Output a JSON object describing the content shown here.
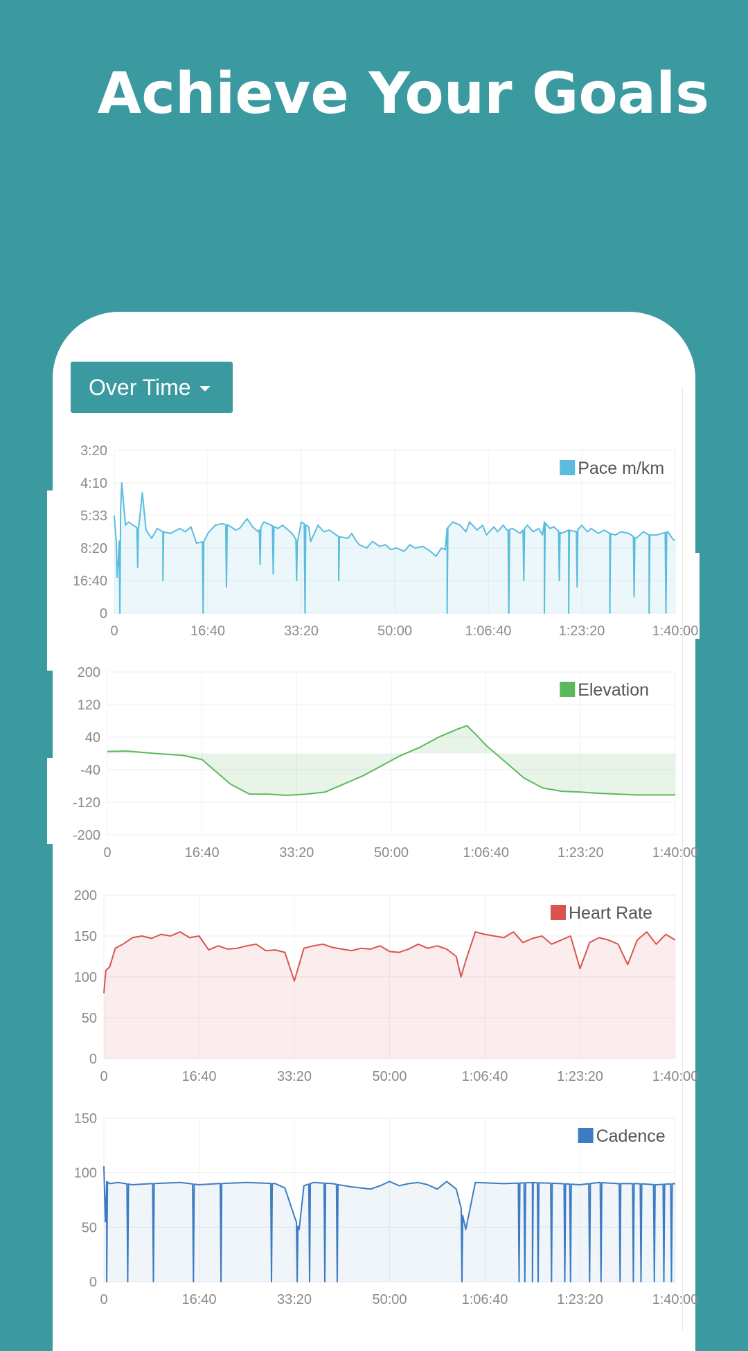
{
  "headline": "Achieve Your Goals",
  "controls": {
    "view_dropdown": "Over Time"
  },
  "chart_data": [
    {
      "type": "area",
      "legend": "Pace m/km",
      "color": "#5bbcdc",
      "fill": "rgba(91,188,220,0.12)",
      "x_ticks": [
        "0",
        "16:40",
        "33:20",
        "50:00",
        "1:06:40",
        "1:23:20",
        "1:40:00"
      ],
      "x_range_seconds": [
        0,
        6000
      ],
      "y_ticks": [
        "3:20",
        "4:10",
        "5:33",
        "8:20",
        "16:40",
        "0"
      ],
      "y_range_index": [
        0,
        5
      ],
      "series": [
        {
          "x": [
            0,
            40,
            80,
            120,
            150,
            200,
            260,
            300,
            340,
            400,
            460,
            520,
            600,
            700,
            760,
            820,
            880,
            960,
            1000,
            1080,
            1150,
            1220,
            1300,
            1340,
            1420,
            1480,
            1540,
            1600,
            1680,
            1750,
            1800,
            1900,
            1960,
            2000,
            2080,
            2100,
            2180,
            2240,
            2300,
            2400,
            2500,
            2540,
            2580,
            2620,
            2700,
            2760,
            2840,
            2900,
            2960,
            3020,
            3100,
            3160,
            3220,
            3300,
            3380,
            3440,
            3500,
            3540,
            3560,
            3620,
            3700,
            3760,
            3800,
            3880,
            3940,
            3980,
            4060,
            4100,
            4160,
            4200,
            4260,
            4340,
            4420,
            4480,
            4540,
            4580,
            4600,
            4660,
            4700,
            4780,
            4860,
            4940,
            5000,
            5060,
            5100,
            5180,
            5240,
            5300,
            5360,
            5420,
            5500,
            5580,
            5660,
            5720,
            5800,
            5860,
            5920,
            5980,
            6000
          ],
          "y": [
            2.0,
            3.55,
            1.0,
            2.3,
            2.2,
            2.3,
            2.4,
            1.3,
            2.45,
            2.7,
            2.4,
            2.5,
            2.55,
            2.4,
            2.5,
            2.35,
            2.85,
            2.8,
            2.55,
            2.3,
            2.25,
            2.3,
            2.45,
            2.4,
            2.1,
            2.35,
            2.5,
            2.2,
            2.3,
            2.4,
            2.3,
            2.55,
            2.8,
            2.2,
            2.35,
            2.8,
            2.3,
            2.5,
            2.45,
            2.65,
            2.7,
            2.55,
            2.75,
            2.9,
            3.0,
            2.8,
            2.95,
            2.9,
            3.05,
            3.0,
            3.1,
            2.9,
            3.0,
            2.95,
            3.1,
            3.25,
            3.0,
            3.05,
            2.4,
            2.2,
            2.3,
            2.5,
            2.2,
            2.45,
            2.3,
            2.6,
            2.35,
            2.5,
            2.3,
            2.45,
            2.4,
            2.55,
            2.3,
            2.5,
            2.4,
            2.6,
            2.2,
            2.4,
            2.35,
            2.55,
            2.45,
            2.5,
            2.3,
            2.5,
            2.4,
            2.55,
            2.45,
            2.55,
            2.6,
            2.5,
            2.55,
            2.7,
            2.5,
            2.6,
            2.6,
            2.55,
            2.5,
            2.75,
            2.75
          ]
        }
      ],
      "dips": [
        {
          "x": 30,
          "y": 3.9
        },
        {
          "x": 60,
          "y": 5.0
        },
        {
          "x": 250,
          "y": 3.6
        },
        {
          "x": 520,
          "y": 4.0
        },
        {
          "x": 950,
          "y": 5.0
        },
        {
          "x": 1200,
          "y": 4.2
        },
        {
          "x": 1560,
          "y": 3.5
        },
        {
          "x": 1700,
          "y": 3.8
        },
        {
          "x": 1950,
          "y": 4.0
        },
        {
          "x": 2040,
          "y": 5.0
        },
        {
          "x": 2400,
          "y": 4.0
        },
        {
          "x": 3560,
          "y": 5.0
        },
        {
          "x": 4220,
          "y": 5.0
        },
        {
          "x": 4380,
          "y": 4.0
        },
        {
          "x": 4600,
          "y": 5.0
        },
        {
          "x": 4760,
          "y": 4.0
        },
        {
          "x": 4860,
          "y": 5.0
        },
        {
          "x": 4950,
          "y": 4.2
        },
        {
          "x": 5300,
          "y": 5.0
        },
        {
          "x": 5560,
          "y": 4.5
        },
        {
          "x": 5720,
          "y": 5.0
        },
        {
          "x": 5900,
          "y": 5.0
        }
      ]
    },
    {
      "type": "area",
      "legend": "Elevation",
      "color": "#5cb85c",
      "fill": "rgba(92,184,92,0.15)",
      "x_ticks": [
        "0",
        "16:40",
        "33:20",
        "50:00",
        "1:06:40",
        "1:23:20",
        "1:40:00"
      ],
      "x_range_seconds": [
        0,
        6000
      ],
      "y_ticks": [
        "200",
        "120",
        "40",
        "-40",
        "-120",
        "-200"
      ],
      "ylim": [
        -200,
        200
      ],
      "baseline": 0,
      "series": [
        {
          "x": [
            0,
            200,
            500,
            800,
            1000,
            1100,
            1300,
            1500,
            1700,
            1900,
            2100,
            2300,
            2500,
            2700,
            2900,
            3100,
            3300,
            3500,
            3700,
            3800,
            3900,
            4000,
            4100,
            4200,
            4400,
            4600,
            4800,
            5000,
            5200,
            5400,
            5600,
            5800,
            6000
          ],
          "y": [
            5,
            6,
            0,
            -5,
            -15,
            -35,
            -75,
            -100,
            -100,
            -103,
            -100,
            -95,
            -75,
            -55,
            -30,
            -5,
            15,
            40,
            60,
            68,
            45,
            20,
            0,
            -20,
            -60,
            -85,
            -93,
            -95,
            -98,
            -100,
            -102,
            -102,
            -102
          ]
        }
      ]
    },
    {
      "type": "area",
      "legend": "Heart Rate",
      "color": "#d9534f",
      "fill": "rgba(217,83,79,0.10)",
      "x_ticks": [
        "0",
        "16:40",
        "33:20",
        "50:00",
        "1:06:40",
        "1:23:20",
        "1:40:00"
      ],
      "x_range_seconds": [
        0,
        6000
      ],
      "y_ticks": [
        "200",
        "150",
        "100",
        "50",
        "0"
      ],
      "ylim": [
        0,
        200
      ],
      "series": [
        {
          "x": [
            0,
            20,
            60,
            120,
            200,
            300,
            400,
            500,
            600,
            700,
            800,
            900,
            1000,
            1100,
            1200,
            1300,
            1400,
            1500,
            1600,
            1700,
            1800,
            1900,
            2000,
            2100,
            2200,
            2300,
            2400,
            2500,
            2600,
            2700,
            2800,
            2900,
            3000,
            3100,
            3200,
            3300,
            3400,
            3500,
            3600,
            3700,
            3750,
            3800,
            3900,
            4000,
            4100,
            4200,
            4300,
            4400,
            4500,
            4600,
            4700,
            4800,
            4900,
            5000,
            5100,
            5200,
            5300,
            5400,
            5500,
            5600,
            5700,
            5800,
            5900,
            6000
          ],
          "y": [
            80,
            108,
            112,
            135,
            140,
            148,
            150,
            147,
            152,
            150,
            155,
            148,
            150,
            133,
            138,
            134,
            135,
            138,
            140,
            132,
            133,
            130,
            95,
            135,
            138,
            140,
            136,
            134,
            132,
            135,
            134,
            138,
            131,
            130,
            134,
            140,
            135,
            138,
            134,
            125,
            100,
            120,
            155,
            152,
            150,
            148,
            155,
            142,
            147,
            150,
            140,
            145,
            150,
            110,
            142,
            148,
            145,
            140,
            115,
            145,
            155,
            140,
            152,
            145
          ]
        }
      ]
    },
    {
      "type": "area",
      "legend": "Cadence",
      "color": "#3d7cc2",
      "fill": "rgba(61,124,194,0.08)",
      "x_ticks": [
        "0",
        "16:40",
        "33:20",
        "50:00",
        "1:06:40",
        "1:23:20",
        "1:40:00"
      ],
      "x_range_seconds": [
        0,
        6000
      ],
      "y_ticks": [
        "150",
        "100",
        "50",
        "0"
      ],
      "ylim": [
        0,
        150
      ],
      "series": [
        {
          "x": [
            0,
            15,
            30,
            60,
            150,
            300,
            500,
            800,
            1000,
            1200,
            1500,
            1800,
            1900,
            2000,
            2050,
            2100,
            2200,
            2400,
            2600,
            2800,
            2900,
            3000,
            3100,
            3200,
            3300,
            3400,
            3500,
            3600,
            3700,
            3750,
            3800,
            3900,
            4200,
            4500,
            4800,
            5000,
            5200,
            5400,
            5600,
            5800,
            6000
          ],
          "y": [
            106,
            55,
            92,
            90,
            91,
            89,
            90,
            91,
            89,
            90,
            91,
            90,
            86,
            60,
            48,
            88,
            91,
            90,
            87,
            85,
            88,
            92,
            88,
            90,
            91,
            89,
            85,
            92,
            85,
            68,
            48,
            91,
            90,
            91,
            90,
            89,
            91,
            90,
            90,
            89,
            90
          ]
        }
      ],
      "dips": [
        {
          "x": 30
        },
        {
          "x": 250
        },
        {
          "x": 520
        },
        {
          "x": 940
        },
        {
          "x": 1230
        },
        {
          "x": 1760
        },
        {
          "x": 2030
        },
        {
          "x": 2160
        },
        {
          "x": 2320
        },
        {
          "x": 2450
        },
        {
          "x": 3760
        },
        {
          "x": 4360
        },
        {
          "x": 4420
        },
        {
          "x": 4500
        },
        {
          "x": 4560
        },
        {
          "x": 4700
        },
        {
          "x": 4840
        },
        {
          "x": 4900
        },
        {
          "x": 5100
        },
        {
          "x": 5220
        },
        {
          "x": 5420
        },
        {
          "x": 5560
        },
        {
          "x": 5640
        },
        {
          "x": 5780
        },
        {
          "x": 5880
        },
        {
          "x": 5960
        }
      ]
    }
  ]
}
